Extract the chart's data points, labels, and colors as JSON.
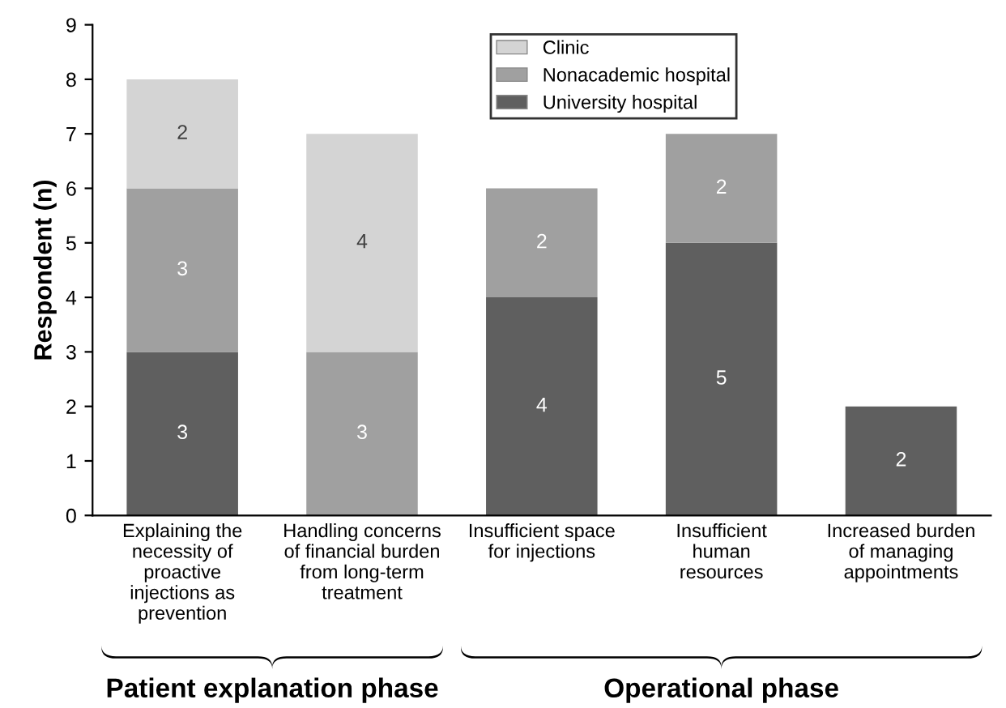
{
  "chart_data": {
    "type": "bar",
    "stacked": true,
    "ylabel": "Respondent (n)",
    "categories": [
      "Explaining the\nnecessity of\nproactive\ninjections as\nprevention",
      "Handling concerns\nof financial burden\nfrom long-term\ntreatment",
      "Insufficient space\nfor injections",
      "Insufficient\nhuman\nresources",
      "Increased burden\nof managing\nappointments"
    ],
    "series": [
      {
        "name": "University hospital",
        "color": "#5f5f5f",
        "values": [
          3,
          null,
          4,
          5,
          2
        ]
      },
      {
        "name": "Nonacademic hospital",
        "color": "#a0a0a0",
        "values": [
          3,
          3,
          2,
          2,
          null
        ]
      },
      {
        "name": "Clinic",
        "color": "#d4d4d4",
        "values": [
          2,
          4,
          null,
          null,
          null
        ]
      }
    ],
    "ylim": [
      0,
      9
    ],
    "yticks": [
      0,
      1,
      2,
      3,
      4,
      5,
      6,
      7,
      8,
      9
    ],
    "data_labels": true,
    "legend": "top",
    "grid": false,
    "annotations": [
      "Patient explanation phase",
      "Operational phase"
    ]
  }
}
